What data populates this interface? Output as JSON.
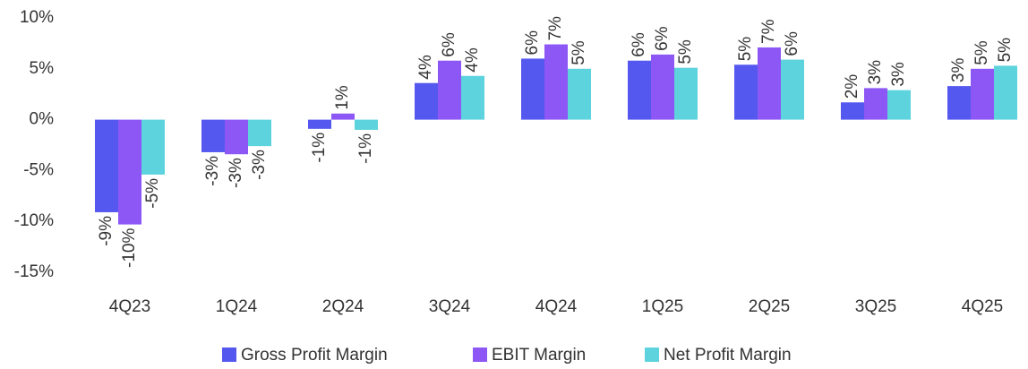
{
  "chart_data": {
    "type": "bar",
    "categories": [
      "4Q23",
      "1Q24",
      "2Q24",
      "3Q24",
      "4Q24",
      "1Q25",
      "2Q25",
      "3Q25",
      "4Q25"
    ],
    "series": [
      {
        "name": "Gross Profit Margin",
        "color": "#5558ef",
        "values": [
          -9.1,
          -3.2,
          -0.9,
          3.6,
          6.0,
          5.8,
          5.4,
          1.7,
          3.3
        ],
        "value_labels": [
          "-9%",
          "-3%",
          "-1%",
          "4%",
          "6%",
          "6%",
          "5%",
          "2%",
          "3%"
        ]
      },
      {
        "name": "EBIT Margin",
        "color": "#8c57f5",
        "values": [
          -10.3,
          -3.4,
          0.6,
          5.8,
          7.4,
          6.4,
          7.1,
          3.1,
          5.0
        ],
        "value_labels": [
          "-10%",
          "-3%",
          "1%",
          "6%",
          "7%",
          "6%",
          "7%",
          "3%",
          "5%"
        ]
      },
      {
        "name": "Net Profit Margin",
        "color": "#5dd3de",
        "values": [
          -5.4,
          -2.6,
          -1.0,
          4.3,
          5.0,
          5.1,
          5.9,
          2.9,
          5.3
        ],
        "value_labels": [
          "-5%",
          "-3%",
          "-1%",
          "4%",
          "5%",
          "5%",
          "6%",
          "3%",
          "5%"
        ]
      }
    ],
    "ylim": [
      -15,
      10
    ],
    "yticks": [
      {
        "value": -15,
        "label": "-15%"
      },
      {
        "value": -10,
        "label": "-10%"
      },
      {
        "value": -5,
        "label": "-5%"
      },
      {
        "value": 0,
        "label": "0%"
      },
      {
        "value": 5,
        "label": "5%"
      },
      {
        "value": 10,
        "label": "10%"
      }
    ],
    "grid": false,
    "legend": "bottom"
  }
}
